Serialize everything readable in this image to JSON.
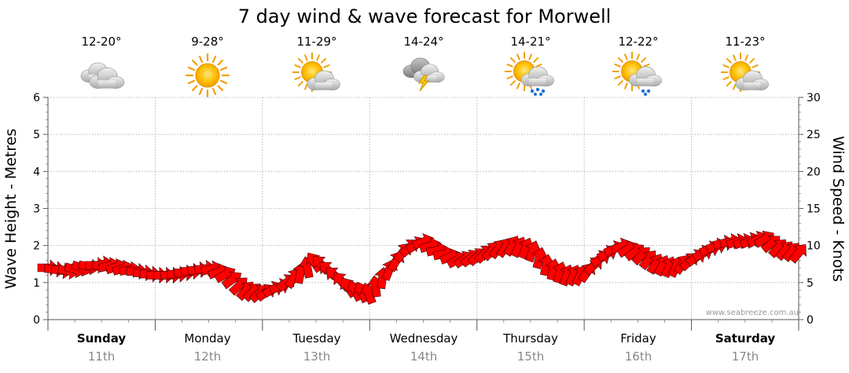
{
  "title": "7 day wind & wave forecast for Morwell",
  "credit": "www.seabreeze.com.au",
  "days": [
    {
      "name": "Sunday",
      "date": "11th",
      "bold": true,
      "temp": "12-20°",
      "icon": "cloudy-icon"
    },
    {
      "name": "Monday",
      "date": "12th",
      "bold": false,
      "temp": "9-28°",
      "icon": "sunny-icon"
    },
    {
      "name": "Tuesday",
      "date": "13th",
      "bold": false,
      "temp": "11-29°",
      "icon": "partly-cloudy-icon"
    },
    {
      "name": "Wednesday",
      "date": "14th",
      "bold": false,
      "temp": "14-24°",
      "icon": "thunderstorm-icon"
    },
    {
      "name": "Thursday",
      "date": "15th",
      "bold": false,
      "temp": "14-21°",
      "icon": "sun-showers-icon"
    },
    {
      "name": "Friday",
      "date": "16th",
      "bold": false,
      "temp": "12-22°",
      "icon": "sun-showers-icon"
    },
    {
      "name": "Saturday",
      "date": "17th",
      "bold": true,
      "temp": "11-23°",
      "icon": "partly-cloudy-icon"
    }
  ],
  "chart_data": {
    "type": "line",
    "title": "7 day wind & wave forecast for Morwell",
    "left_axis": {
      "label": "Wave Height - Metres",
      "range": [
        0,
        6
      ],
      "ticks": [
        0,
        1,
        2,
        3,
        4,
        5,
        6
      ]
    },
    "right_axis": {
      "label": "Wind Speed - Knots",
      "range": [
        0,
        30
      ],
      "ticks": [
        0,
        5,
        10,
        15,
        20,
        25,
        30
      ]
    },
    "x_range_days": [
      0,
      7
    ],
    "grid": true,
    "series": [
      {
        "color": "#ff0000",
        "x": [
          0.0,
          0.17,
          0.33,
          0.5,
          0.67,
          0.83,
          1.0,
          1.17,
          1.33,
          1.5,
          1.67,
          1.83,
          2.0,
          2.17,
          2.33,
          2.5,
          2.67,
          2.83,
          3.0,
          3.17,
          3.33,
          3.5,
          3.67,
          3.83,
          4.0,
          4.17,
          4.33,
          4.5,
          4.67,
          4.83,
          5.0,
          5.17,
          5.33,
          5.5,
          5.67,
          5.83,
          6.0,
          6.17,
          6.33,
          6.5,
          6.67,
          6.83,
          7.0
        ],
        "wind_knots": [
          7.0,
          6.5,
          7.0,
          7.5,
          7.0,
          6.5,
          6.0,
          6.0,
          6.5,
          7.0,
          6.0,
          4.0,
          3.5,
          4.5,
          6.0,
          8.0,
          6.0,
          4.0,
          3.5,
          6.5,
          9.5,
          10.5,
          9.0,
          8.0,
          8.5,
          9.5,
          10.0,
          9.5,
          7.0,
          6.0,
          6.0,
          8.5,
          10.0,
          9.0,
          7.5,
          7.0,
          8.0,
          9.5,
          10.5,
          10.5,
          11.0,
          9.5,
          9.0
        ],
        "wind_direction_deg": [
          270,
          280,
          290,
          260,
          250,
          270,
          270,
          270,
          270,
          260,
          240,
          220,
          230,
          250,
          200,
          140,
          130,
          150,
          160,
          200,
          220,
          250,
          260,
          240,
          230,
          220,
          210,
          200,
          190,
          200,
          210,
          240,
          250,
          230,
          210,
          200,
          230,
          250,
          260,
          250,
          240,
          220,
          220
        ]
      }
    ]
  }
}
